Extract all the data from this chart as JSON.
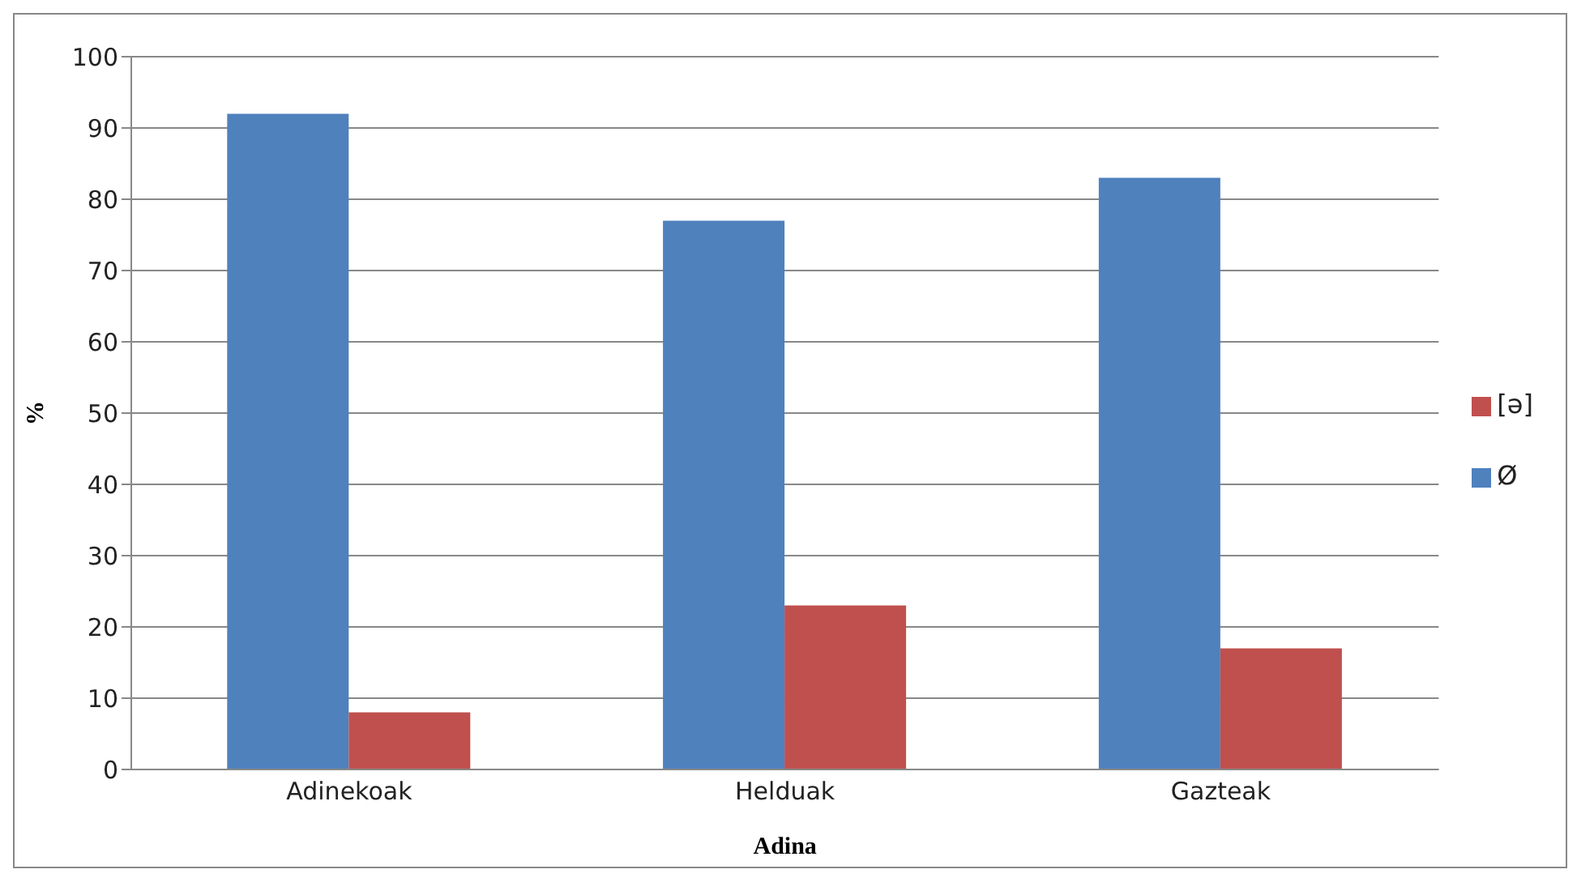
{
  "chart_data": {
    "type": "bar",
    "categories": [
      "Adinekoak",
      "Helduak",
      "Gazteak"
    ],
    "xlabel": "Adina",
    "ylabel": "%",
    "series": [
      {
        "name": "Ø",
        "color": "#4f81bd",
        "values": [
          92,
          77,
          83
        ]
      },
      {
        "name": "[ə]",
        "color": "#c0504d",
        "values": [
          8,
          23,
          17
        ]
      }
    ],
    "ylim": [
      0,
      100
    ],
    "yticks": [
      0,
      10,
      20,
      30,
      40,
      50,
      60,
      70,
      80,
      90,
      100
    ],
    "grid": "y",
    "legend": "right"
  }
}
